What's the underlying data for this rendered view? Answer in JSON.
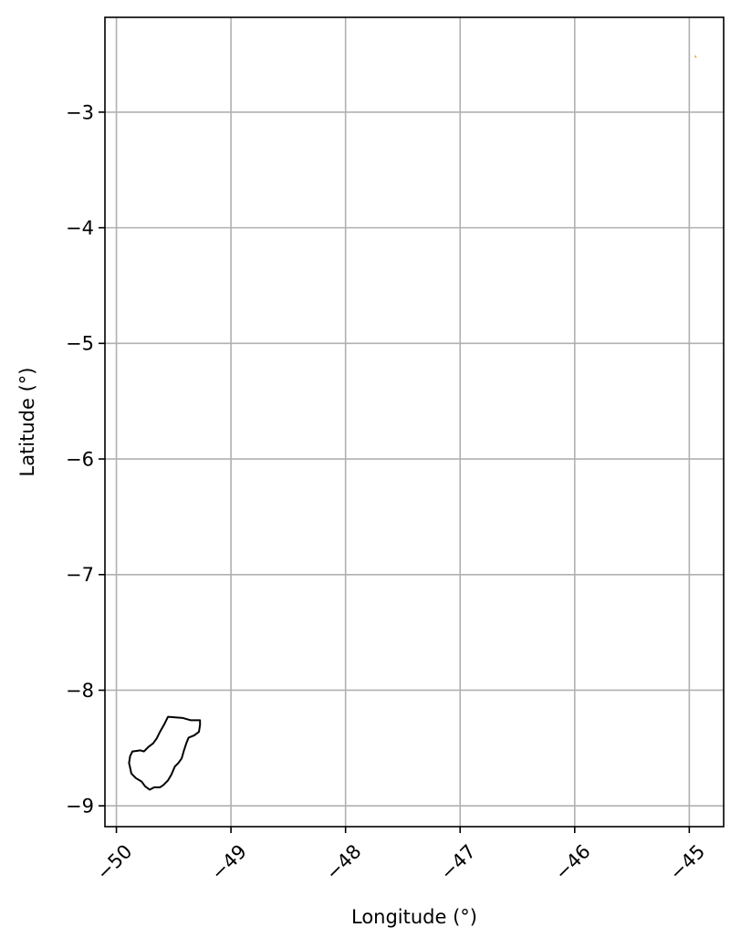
{
  "chart_data": {
    "type": "map",
    "xlabel": "Longitude (°)",
    "ylabel": "Latitude (°)",
    "xlim": [
      -50.1,
      -44.7
    ],
    "ylim": [
      -9.18,
      -2.18
    ],
    "xticks": [
      -50,
      -49,
      -48,
      -47,
      -46,
      -45
    ],
    "yticks": [
      -3,
      -4,
      -5,
      -6,
      -7,
      -8,
      -9
    ],
    "xtick_labels": [
      "−50",
      "−49",
      "−48",
      "−47",
      "−46",
      "−45"
    ],
    "ytick_labels": [
      "−3",
      "−4",
      "−5",
      "−6",
      "−7",
      "−8",
      "−9"
    ],
    "grid": true,
    "region_outline": {
      "color": "#000000",
      "coords": [
        [
          -49.55,
          -8.23
        ],
        [
          -49.42,
          -8.24
        ],
        [
          -49.35,
          -8.26
        ],
        [
          -49.27,
          -8.26
        ],
        [
          -49.27,
          -8.3
        ],
        [
          -49.28,
          -8.36
        ],
        [
          -49.32,
          -8.39
        ],
        [
          -49.37,
          -8.41
        ],
        [
          -49.39,
          -8.46
        ],
        [
          -49.41,
          -8.52
        ],
        [
          -49.43,
          -8.59
        ],
        [
          -49.46,
          -8.63
        ],
        [
          -49.49,
          -8.66
        ],
        [
          -49.52,
          -8.73
        ],
        [
          -49.55,
          -8.78
        ],
        [
          -49.59,
          -8.82
        ],
        [
          -49.62,
          -8.84
        ],
        [
          -49.67,
          -8.84
        ],
        [
          -49.71,
          -8.86
        ],
        [
          -49.75,
          -8.83
        ],
        [
          -49.78,
          -8.79
        ],
        [
          -49.83,
          -8.76
        ],
        [
          -49.87,
          -8.72
        ],
        [
          -49.88,
          -8.67
        ],
        [
          -49.89,
          -8.63
        ],
        [
          -49.88,
          -8.57
        ],
        [
          -49.86,
          -8.53
        ],
        [
          -49.79,
          -8.52
        ],
        [
          -49.76,
          -8.53
        ],
        [
          -49.72,
          -8.49
        ],
        [
          -49.68,
          -8.46
        ],
        [
          -49.65,
          -8.42
        ],
        [
          -49.62,
          -8.36
        ],
        [
          -49.58,
          -8.29
        ],
        [
          -49.55,
          -8.23
        ]
      ]
    },
    "marker": {
      "color": "#e6a640",
      "coords": [
        [
          -44.95,
          -2.51
        ],
        [
          -44.94,
          -2.53
        ]
      ]
    }
  }
}
